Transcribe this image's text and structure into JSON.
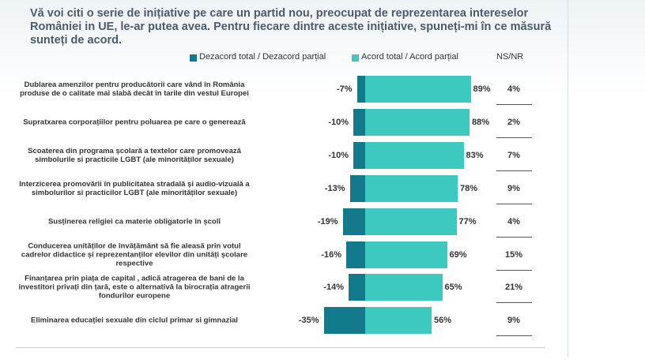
{
  "chart_data": {
    "type": "diverging-bar",
    "title": "Vă voi citi o serie de inițiative pe care un partid nou, preocupat de reprezentarea intereselor României in UE, le-ar putea avea. Pentru fiecare dintre aceste inițiative, spuneți-mi în ce măsură sunteți de acord.",
    "categories": [
      "Dublarea amenzilor pentru producătorii care vând în România produse de o calitate mai slabă decât în tarile din vestul Europei",
      "Supratxarea corporațiilor pentru poluarea pe care o generează",
      "Scoaterea din programa școlară a textelor care promovează simbolurile si practicile LGBT (ale minorităților sexuale)",
      "Interzicerea promovării în publicitatea stradală și audio-vizuală a simbolurilor si practicilor LGBT (ale minorităților sexuale)",
      "Susținerea religiei ca materie obligatorie în școli",
      "Conducerea unităților de învățământ să fie aleasă prin votul cadrelor didactice și reprezentanților elevilor din unități școlare respective",
      "Finanțarea prin piața de capital , adică atragerea de bani de la investitori privați din țară, este o alternativă la birocrația atragerii fondurilor europene",
      "Eliminarea educației sexuale din ciclul primar si gimnazial"
    ],
    "series": [
      {
        "name": "Dezacord total / Dezacord parțial",
        "color": "#137a8c",
        "values": [
          -7,
          -10,
          -10,
          -13,
          -19,
          -16,
          -14,
          -35
        ],
        "value_labels": [
          "-7%",
          "-10%",
          "-10%",
          "-13%",
          "-19%",
          "-16%",
          "-14%",
          "-35%"
        ]
      },
      {
        "name": "Acord total / Acord parțial",
        "color": "#3ec9c0",
        "values": [
          89,
          88,
          83,
          78,
          77,
          69,
          65,
          56
        ],
        "value_labels": [
          "89%",
          "88%",
          "83%",
          "78%",
          "77%",
          "69%",
          "65%",
          "56%"
        ]
      },
      {
        "name": "NS/NR",
        "values": [
          4,
          2,
          7,
          9,
          4,
          15,
          21,
          9
        ],
        "value_labels": [
          "4%",
          "2%",
          "7%",
          "9%",
          "4%",
          "15%",
          "21%",
          "9%"
        ]
      }
    ]
  }
}
